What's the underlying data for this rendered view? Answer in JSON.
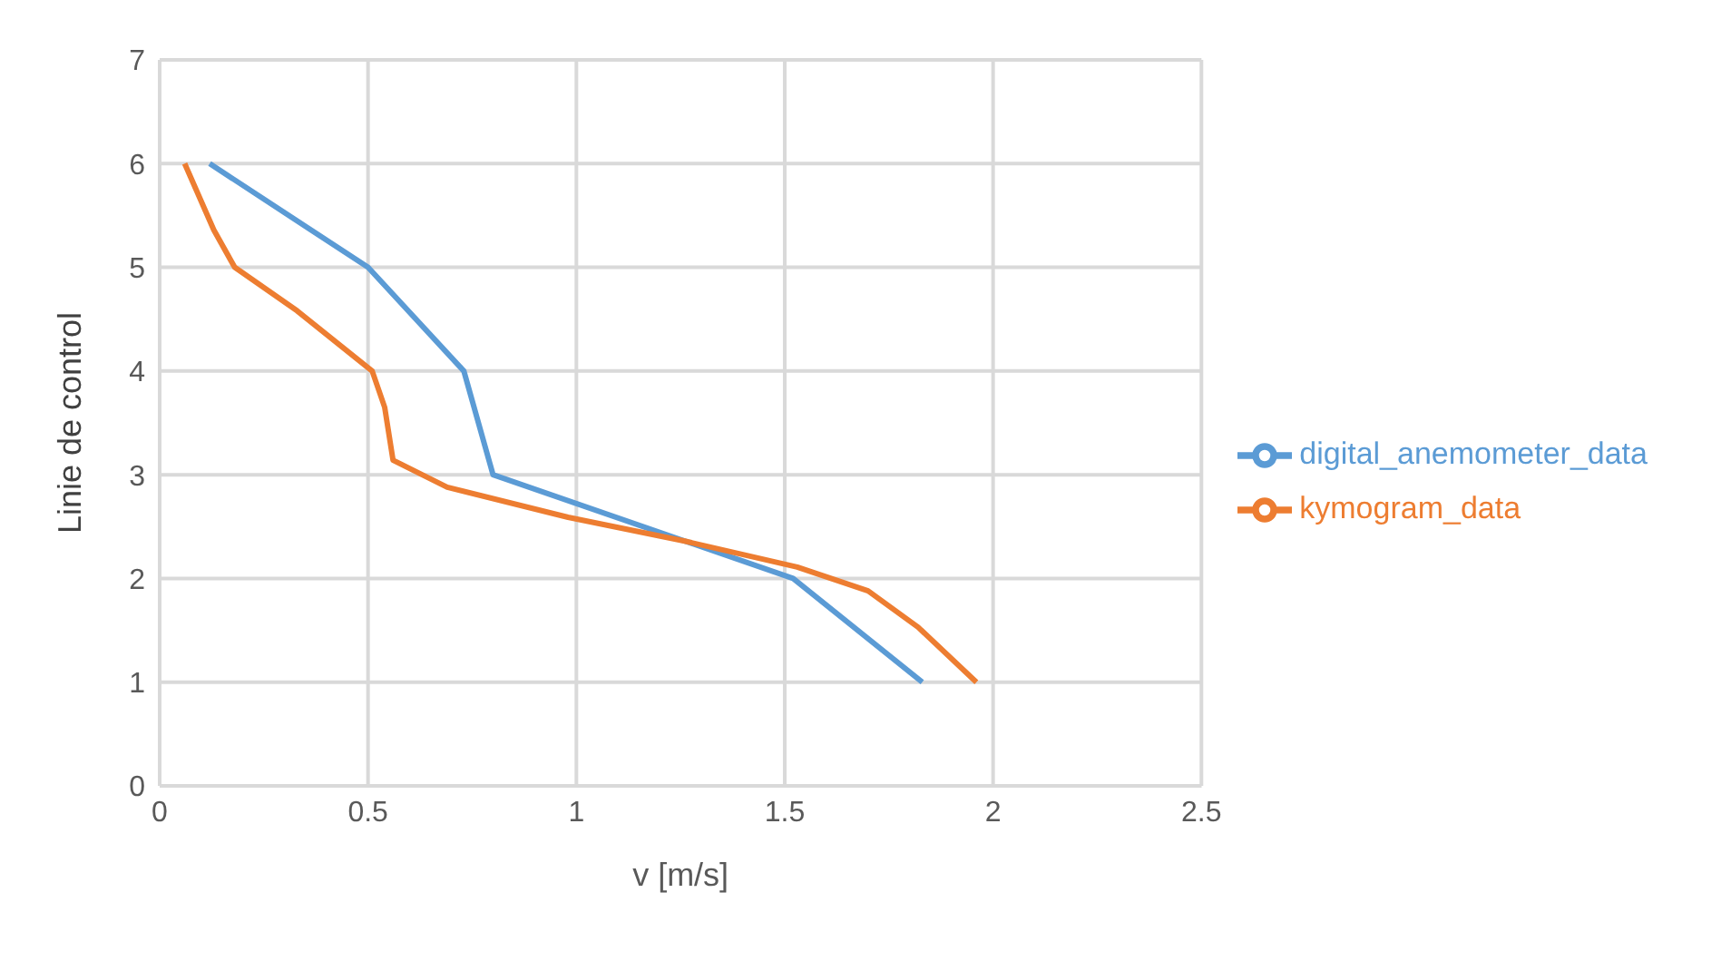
{
  "chart_data": {
    "type": "line",
    "xlabel": "v [m/s]",
    "ylabel": "Linie de control",
    "xlim": [
      0,
      2.5
    ],
    "xticks": [
      0,
      0.5,
      1,
      1.5,
      2,
      2.5
    ],
    "ylim": [
      0,
      7
    ],
    "yticks": [
      0,
      1,
      2,
      3,
      4,
      5,
      6,
      7
    ],
    "grid": true,
    "legend": "right",
    "marker": "none",
    "line_style": "solid",
    "series": [
      {
        "name": "digital_anemometer_data",
        "color": "#5b9bd5",
        "x": [
          0.12,
          0.5,
          0.73,
          0.8,
          1.52,
          1.83
        ],
        "values": [
          6,
          5,
          4,
          3,
          2,
          1
        ]
      },
      {
        "name": "kymogram_data",
        "color": "#ed7d31",
        "x": [
          0.06,
          0.13,
          0.18,
          0.33,
          0.51,
          0.54,
          0.56,
          0.69,
          0.98,
          1.26,
          1.53,
          1.7,
          1.82,
          1.96
        ],
        "values": [
          6,
          5.36,
          5,
          4.58,
          4,
          3.65,
          3.14,
          2.88,
          2.59,
          2.36,
          2.11,
          1.88,
          1.53,
          1
        ]
      }
    ]
  }
}
